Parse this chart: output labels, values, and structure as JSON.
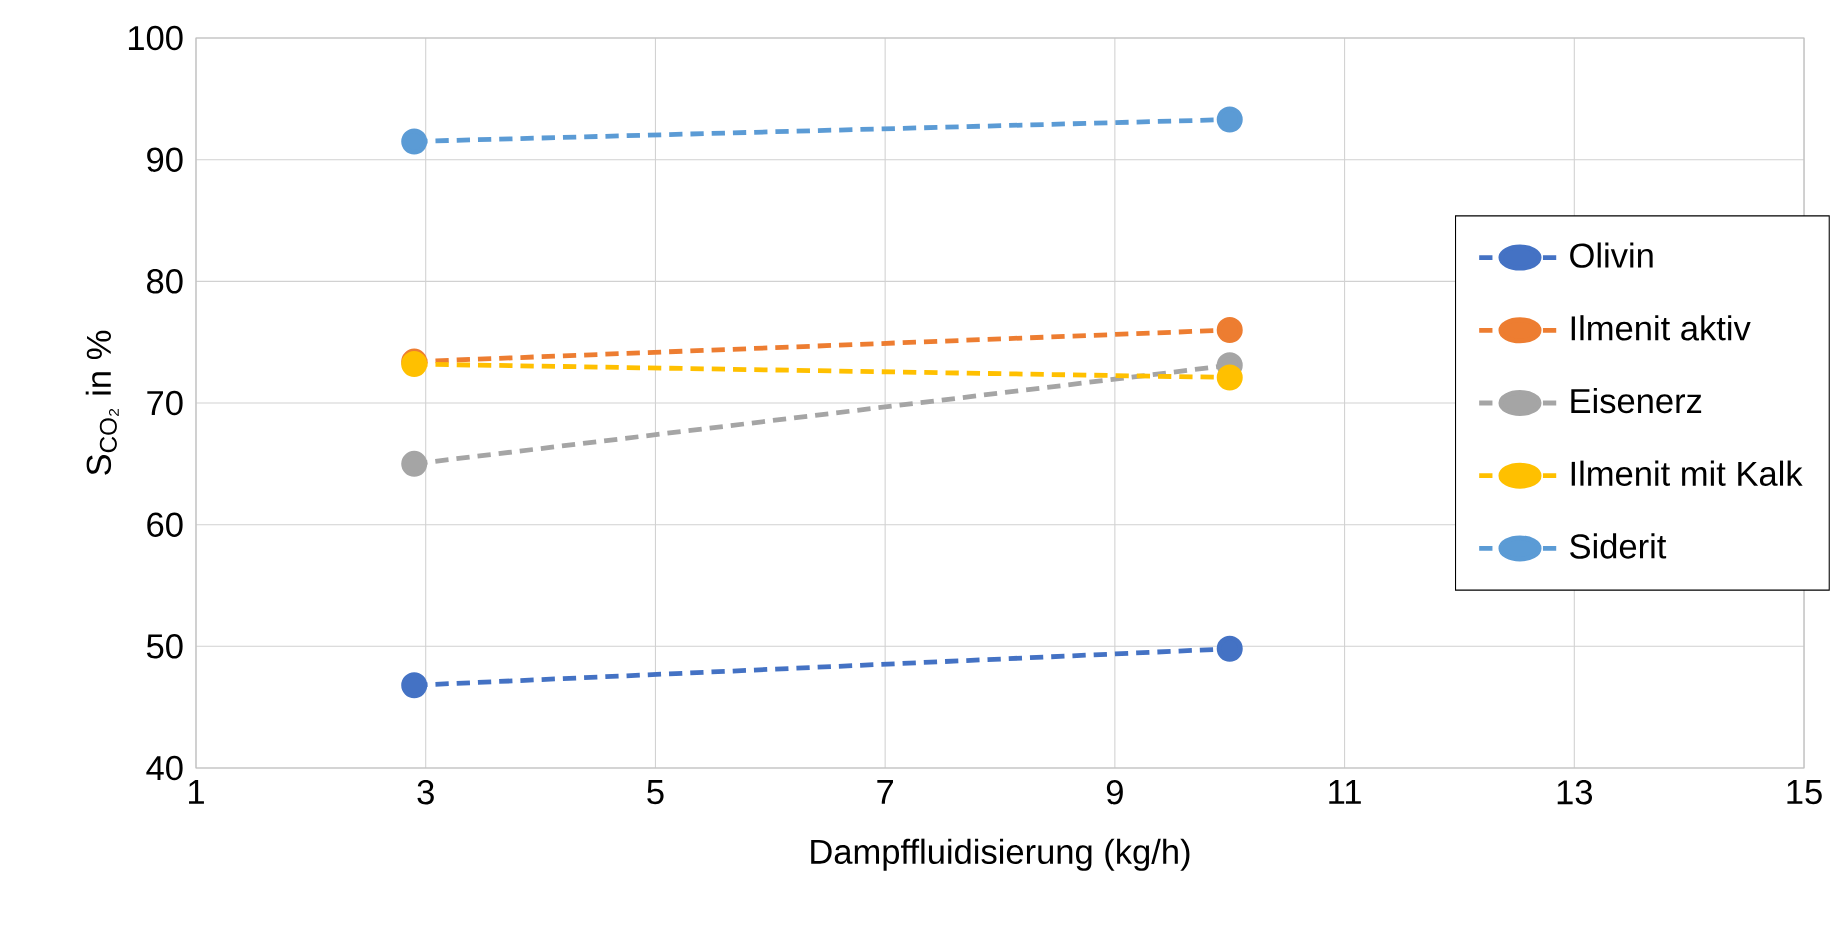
{
  "chart_data": {
    "type": "line",
    "xlabel": "Dampffluidisierung (kg/h)",
    "ylabel": "S$_{CO₂}$ in %",
    "x": [
      2.9,
      10
    ],
    "xlim": [
      1,
      15
    ],
    "xticks": [
      1,
      3,
      5,
      7,
      9,
      11,
      13,
      15
    ],
    "ylim": [
      40,
      100
    ],
    "yticks": [
      40,
      50,
      60,
      70,
      80,
      90,
      100
    ],
    "grid": true,
    "legend": "right",
    "marker": "circle",
    "line_style": "dashed",
    "series": [
      {
        "name": "Olivin",
        "color": "#4472c4",
        "values": [
          46.8,
          49.8
        ]
      },
      {
        "name": "Ilmenit aktiv",
        "color": "#ed7d31",
        "values": [
          73.4,
          76.0
        ]
      },
      {
        "name": "Eisenerz",
        "color": "#a5a5a5",
        "values": [
          65.0,
          73.1
        ]
      },
      {
        "name": "Ilmenit mit Kalk",
        "color": "#ffc000",
        "values": [
          73.2,
          72.1
        ]
      },
      {
        "name": "Siderit",
        "color": "#5b9bd5",
        "values": [
          91.5,
          93.3
        ]
      }
    ]
  }
}
